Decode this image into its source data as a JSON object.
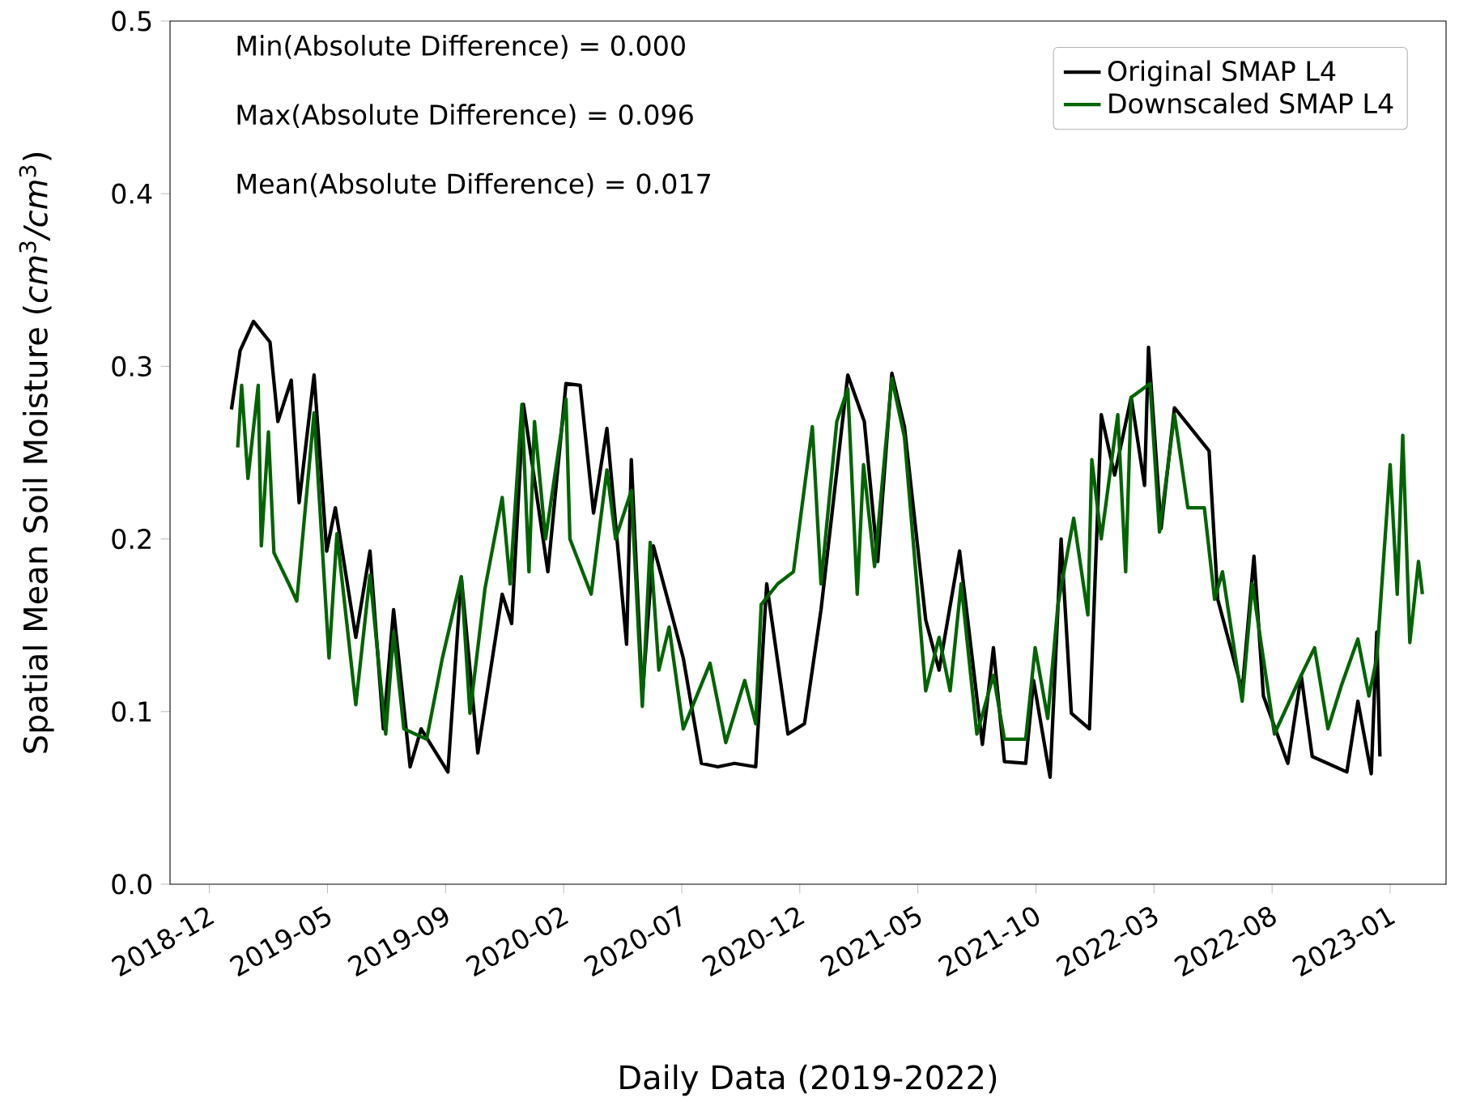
{
  "chart_data": {
    "type": "line",
    "xlabel": "Daily Data (2019-2022)",
    "ylabel": "Spatial Mean Soil Moisture (*cm*$^{3}$*/cm*$^{3}$)",
    "annotations": [
      "Min(Absolute Difference) = 0.000",
      "Max(Absolute Difference) = 0.096",
      "Mean(Absolute Difference) = 0.017"
    ],
    "xlim": [
      "2018-10-15",
      "2023-03-24"
    ],
    "xticks": [
      {
        "value": "2018-12-04",
        "label": "2018-12"
      },
      {
        "value": "2019-05-03",
        "label": "2019-05"
      },
      {
        "value": "2019-09-30",
        "label": "2019-09"
      },
      {
        "value": "2020-02-27",
        "label": "2020-02"
      },
      {
        "value": "2020-07-26",
        "label": "2020-07"
      },
      {
        "value": "2020-12-23",
        "label": "2020-12"
      },
      {
        "value": "2021-05-22",
        "label": "2021-05"
      },
      {
        "value": "2021-10-19",
        "label": "2021-10"
      },
      {
        "value": "2022-03-18",
        "label": "2022-03"
      },
      {
        "value": "2022-08-15",
        "label": "2022-08"
      },
      {
        "value": "2023-01-12",
        "label": "2023-01"
      }
    ],
    "ylim": [
      0,
      0.5
    ],
    "yticks": [
      {
        "value": 0,
        "label": "0.0"
      },
      0.1,
      0.2,
      0.3,
      0.4,
      0.5
    ],
    "legend": "top right",
    "series": [
      {
        "name": "Original SMAP L4",
        "color": "#000000",
        "x": [
          "2019-01-01",
          "2019-01-12",
          "2019-01-29",
          "2019-02-19",
          "2019-03-01",
          "2019-03-18",
          "2019-03-28",
          "2019-04-16",
          "2019-05-02",
          "2019-05-13",
          "2019-06-08",
          "2019-06-26",
          "2019-07-13",
          "2019-07-26",
          "2019-08-16",
          "2019-08-30",
          "2019-10-03",
          "2019-10-20",
          "2019-11-10",
          "2019-12-11",
          "2019-12-23",
          "2020-01-07",
          "2020-02-07",
          "2020-03-01",
          "2020-03-19",
          "2020-04-05",
          "2020-04-22",
          "2020-05-17",
          "2020-05-23",
          "2020-06-06",
          "2020-06-20",
          "2020-07-10",
          "2020-07-28",
          "2020-08-20",
          "2020-09-10",
          "2020-10-01",
          "2020-10-28",
          "2020-11-11",
          "2020-12-08",
          "2020-12-29",
          "2021-01-19",
          "2021-02-22",
          "2021-03-15",
          "2021-04-01",
          "2021-04-19",
          "2021-05-05",
          "2021-06-01",
          "2021-06-18",
          "2021-07-14",
          "2021-08-12",
          "2021-08-26",
          "2021-09-09",
          "2021-10-06",
          "2021-10-16",
          "2021-11-06",
          "2021-11-20",
          "2021-12-03",
          "2021-12-26",
          "2022-01-10",
          "2022-01-27",
          "2022-02-17",
          "2022-03-06",
          "2022-03-11",
          "2022-03-27",
          "2022-04-13",
          "2022-05-27",
          "2022-06-07",
          "2022-07-08",
          "2022-07-23",
          "2022-08-04",
          "2022-09-04",
          "2022-09-21",
          "2022-10-05",
          "2022-11-18",
          "2022-12-02",
          "2022-12-19",
          "2022-12-26",
          "2022-12-30"
        ],
        "values": [
          0.275,
          0.309,
          0.326,
          0.314,
          0.268,
          0.292,
          0.221,
          0.295,
          0.193,
          0.218,
          0.143,
          0.193,
          0.09,
          0.159,
          0.068,
          0.09,
          0.065,
          0.178,
          0.076,
          0.168,
          0.151,
          0.278,
          0.181,
          0.29,
          0.289,
          0.215,
          0.264,
          0.139,
          0.246,
          0.109,
          0.196,
          0.162,
          0.131,
          0.07,
          0.068,
          0.07,
          0.068,
          0.174,
          0.087,
          0.093,
          0.159,
          0.295,
          0.268,
          0.187,
          0.296,
          0.265,
          0.153,
          0.124,
          0.193,
          0.081,
          0.137,
          0.071,
          0.07,
          0.118,
          0.062,
          0.2,
          0.099,
          0.09,
          0.272,
          0.237,
          0.282,
          0.231,
          0.311,
          0.206,
          0.276,
          0.251,
          0.165,
          0.112,
          0.19,
          0.109,
          0.07,
          0.121,
          0.074,
          0.065,
          0.106,
          0.064,
          0.146,
          0.074
        ]
      },
      {
        "name": "Downscaled SMAP L4",
        "color": "#006400",
        "x": [
          "2019-01-09",
          "2019-01-14",
          "2019-01-22",
          "2019-02-04",
          "2019-02-08",
          "2019-02-17",
          "2019-02-24",
          "2019-03-15",
          "2019-03-25",
          "2019-04-16",
          "2019-05-05",
          "2019-05-15",
          "2019-06-08",
          "2019-06-26",
          "2019-07-16",
          "2019-07-26",
          "2019-08-08",
          "2019-09-06",
          "2019-09-26",
          "2019-10-20",
          "2019-10-31",
          "2019-11-19",
          "2019-12-11",
          "2019-12-21",
          "2020-01-05",
          "2020-01-14",
          "2020-01-21",
          "2020-02-04",
          "2020-03-01",
          "2020-03-06",
          "2020-04-02",
          "2020-04-22",
          "2020-05-03",
          "2020-05-23",
          "2020-06-06",
          "2020-06-16",
          "2020-06-27",
          "2020-07-10",
          "2020-07-28",
          "2020-08-31",
          "2020-09-20",
          "2020-10-14",
          "2020-10-28",
          "2020-11-04",
          "2020-11-25",
          "2020-12-15",
          "2021-01-08",
          "2021-01-19",
          "2021-02-08",
          "2021-02-22",
          "2021-03-06",
          "2021-03-14",
          "2021-03-28",
          "2021-04-19",
          "2021-05-05",
          "2021-06-01",
          "2021-06-18",
          "2021-07-02",
          "2021-07-16",
          "2021-08-05",
          "2021-08-26",
          "2021-09-09",
          "2021-10-06",
          "2021-10-18",
          "2021-11-03",
          "2021-11-16",
          "2021-12-06",
          "2021-12-24",
          "2021-12-29",
          "2022-01-10",
          "2022-01-31",
          "2022-02-10",
          "2022-02-17",
          "2022-03-13",
          "2022-03-25",
          "2022-04-13",
          "2022-04-30",
          "2022-05-21",
          "2022-06-03",
          "2022-06-13",
          "2022-07-08",
          "2022-07-21",
          "2022-08-18",
          "2022-09-21",
          "2022-10-08",
          "2022-10-25",
          "2022-11-11",
          "2022-12-02",
          "2022-12-16",
          "2022-12-26",
          "2023-01-12",
          "2023-01-21",
          "2023-01-28",
          "2023-02-06",
          "2023-02-17",
          "2023-02-22"
        ],
        "values": [
          0.253,
          0.289,
          0.235,
          0.289,
          0.196,
          0.262,
          0.192,
          0.174,
          0.164,
          0.273,
          0.131,
          0.203,
          0.104,
          0.179,
          0.087,
          0.146,
          0.09,
          0.084,
          0.131,
          0.178,
          0.099,
          0.171,
          0.224,
          0.174,
          0.278,
          0.181,
          0.268,
          0.2,
          0.281,
          0.2,
          0.168,
          0.24,
          0.2,
          0.228,
          0.103,
          0.198,
          0.124,
          0.149,
          0.09,
          0.128,
          0.082,
          0.118,
          0.093,
          0.162,
          0.174,
          0.181,
          0.265,
          0.174,
          0.268,
          0.287,
          0.168,
          0.243,
          0.184,
          0.293,
          0.259,
          0.112,
          0.143,
          0.112,
          0.174,
          0.087,
          0.121,
          0.084,
          0.084,
          0.137,
          0.096,
          0.162,
          0.212,
          0.156,
          0.246,
          0.2,
          0.272,
          0.181,
          0.282,
          0.29,
          0.204,
          0.272,
          0.218,
          0.218,
          0.165,
          0.181,
          0.106,
          0.174,
          0.087,
          0.121,
          0.137,
          0.09,
          0.115,
          0.142,
          0.109,
          0.131,
          0.243,
          0.168,
          0.26,
          0.14,
          0.187,
          0.168
        ]
      }
    ]
  }
}
